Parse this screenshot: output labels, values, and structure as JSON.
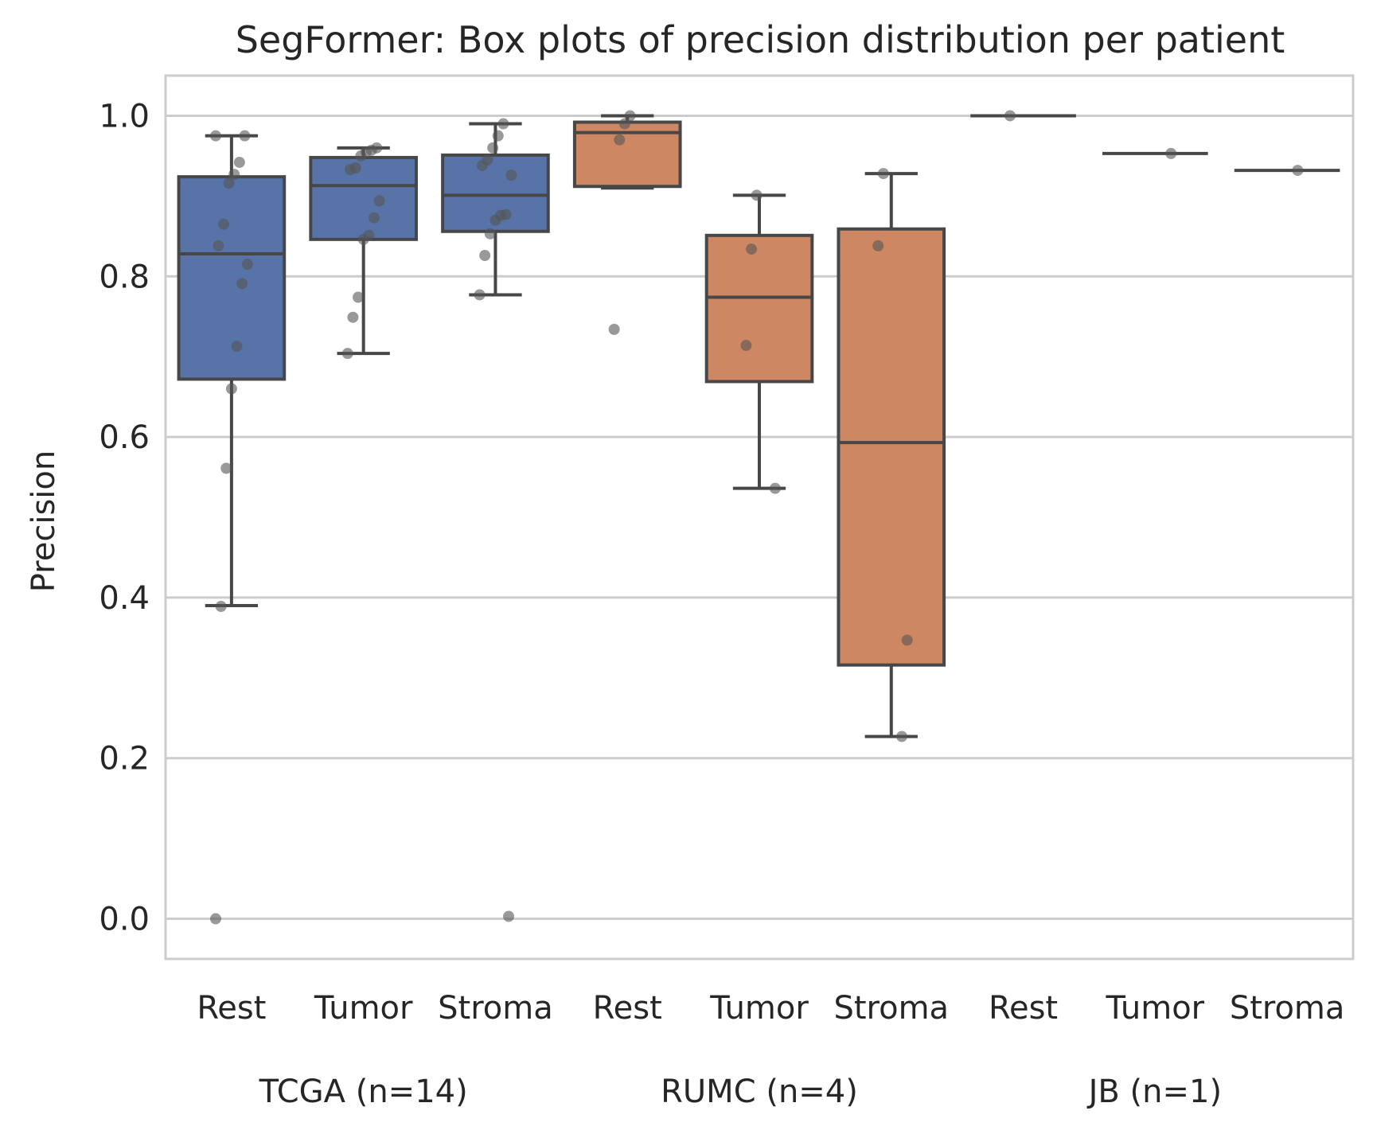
{
  "chart_data": {
    "type": "box",
    "title": "SegFormer: Box plots of precision distribution per patient",
    "ylabel": "Precision",
    "xlabel": "",
    "ylim": [
      -0.05,
      1.05
    ],
    "yticks": [
      0.0,
      0.2,
      0.4,
      0.6,
      0.8,
      1.0
    ],
    "ytick_labels": [
      "0.0",
      "0.2",
      "0.4",
      "0.6",
      "0.8",
      "1.0"
    ],
    "grid": true,
    "legend": "none",
    "colors": {
      "TCGA": "#5873a8",
      "RUMC": "#cd8863",
      "JB": "#cd8863",
      "edge": "#474747",
      "point": "#555555"
    },
    "groups": [
      {
        "name": "TCGA (n=14)",
        "boxes": [
          {
            "category": "Rest",
            "whisker_low": 0.39,
            "q1": 0.672,
            "median": 0.828,
            "q3": 0.924,
            "whisker_high": 0.975,
            "points": [
              0.975,
              0.975,
              0.942,
              0.927,
              0.916,
              0.865,
              0.838,
              0.815,
              0.791,
              0.713,
              0.66,
              0.561,
              0.389,
              0.0
            ]
          },
          {
            "category": "Tumor",
            "whisker_low": 0.704,
            "q1": 0.846,
            "median": 0.913,
            "q3": 0.948,
            "whisker_high": 0.96,
            "points": [
              0.96,
              0.957,
              0.955,
              0.95,
              0.935,
              0.933,
              0.894,
              0.873,
              0.851,
              0.846,
              0.774,
              0.749,
              0.704
            ]
          },
          {
            "category": "Stroma",
            "whisker_low": 0.777,
            "q1": 0.856,
            "median": 0.901,
            "q3": 0.951,
            "whisker_high": 0.99,
            "points": [
              0.99,
              0.975,
              0.96,
              0.945,
              0.938,
              0.926,
              0.877,
              0.876,
              0.87,
              0.853,
              0.826,
              0.777,
              0.003
            ]
          }
        ]
      },
      {
        "name": "RUMC (n=4)",
        "boxes": [
          {
            "category": "Rest",
            "whisker_low": 0.91,
            "q1": 0.912,
            "median": 0.979,
            "q3": 0.992,
            "whisker_high": 1.0,
            "points": [
              1.0,
              0.99,
              0.97,
              0.734
            ]
          },
          {
            "category": "Tumor",
            "whisker_low": 0.536,
            "q1": 0.669,
            "median": 0.774,
            "q3": 0.851,
            "whisker_high": 0.901,
            "points": [
              0.901,
              0.834,
              0.714,
              0.536
            ]
          },
          {
            "category": "Stroma",
            "whisker_low": 0.227,
            "q1": 0.316,
            "median": 0.593,
            "q3": 0.859,
            "whisker_high": 0.928,
            "points": [
              0.928,
              0.838,
              0.347,
              0.227
            ]
          }
        ]
      },
      {
        "name": "JB (n=1)",
        "boxes": [
          {
            "category": "Rest",
            "whisker_low": 1.0,
            "q1": 1.0,
            "median": 1.0,
            "q3": 1.0,
            "whisker_high": 1.0,
            "points": [
              1.0
            ]
          },
          {
            "category": "Tumor",
            "whisker_low": 0.953,
            "q1": 0.953,
            "median": 0.953,
            "q3": 0.953,
            "whisker_high": 0.953,
            "points": [
              0.953
            ]
          },
          {
            "category": "Stroma",
            "whisker_low": 0.932,
            "q1": 0.932,
            "median": 0.932,
            "q3": 0.932,
            "whisker_high": 0.932,
            "points": [
              0.932
            ]
          }
        ]
      }
    ]
  }
}
